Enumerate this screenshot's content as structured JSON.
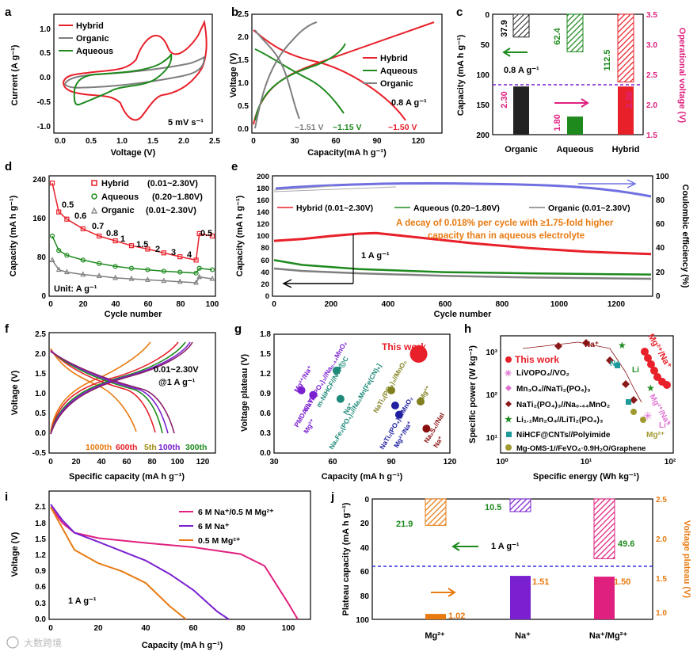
{
  "watermark": "大数跨境",
  "colors": {
    "hybrid": "#e8202a",
    "organic": "#7f7f7f",
    "aqueous": "#1e8a1e",
    "pink": "#e0207f",
    "purple": "#7a20d0",
    "orange": "#e87a10",
    "blue": "#7070e0",
    "black": "#000000"
  },
  "panels": {
    "a": {
      "label": "a",
      "ylabel": "Current (A g⁻¹)",
      "xlabel": "Voltage (V)",
      "note": "5 mV s⁻¹",
      "xticks": [
        "0.0",
        "0.5",
        "1.0",
        "1.5",
        "2.0",
        "2.5"
      ],
      "yticks": [
        "1.0",
        "0.5",
        "0.0",
        "-0.5",
        "-1.0"
      ],
      "legend": [
        "Hybrid",
        "Organic",
        "Aqueous"
      ]
    },
    "b": {
      "label": "b",
      "ylabel": "Voltage (V)",
      "xlabel": "Capacity(mA h g⁻¹)",
      "xticks": [
        "0",
        "30",
        "60",
        "90",
        "120"
      ],
      "yticks": [
        "0.0",
        "0.5",
        "1.0",
        "1.5",
        "2.0",
        "2.5"
      ],
      "legend": [
        "Hybrid",
        "Aqueous",
        "Organic"
      ],
      "rate": "0.8 A g⁻¹",
      "plateaus": [
        "~1.51 V",
        "~1.15 V",
        "~1.50 V"
      ]
    },
    "c": {
      "label": "c",
      "ylabel": "Capacity (mA h g⁻¹)",
      "ylabel2": "Operational voltage (V)",
      "yticks": [
        "0",
        "50",
        "100",
        "150",
        "200"
      ],
      "yticks2": [
        "3.5",
        "3.0",
        "2.5",
        "2.0",
        "1.5"
      ],
      "categories": [
        "Organic",
        "Aqueous",
        "Hybrid"
      ],
      "capacity_labels": [
        "37.9",
        "62.4",
        "112.5"
      ],
      "voltage_labels": [
        "2.30",
        "1.80",
        "2.30"
      ],
      "rate": "0.8 A g⁻¹"
    },
    "d": {
      "label": "d",
      "ylabel": "Capacity (mA h g⁻¹)",
      "xlabel": "Cycle number",
      "xticks": [
        "0",
        "20",
        "40",
        "60",
        "80",
        "100"
      ],
      "yticks": [
        "0",
        "80",
        "160",
        "240"
      ],
      "legend": [
        "Hybrid",
        "Aqueous",
        "Organic"
      ],
      "legend_ranges": [
        "(0.01~2.30V)",
        "(0.20~1.80V)",
        "(0.01~2.30V)"
      ],
      "rates": [
        "0.5",
        "0.6",
        "0.7",
        "0.8",
        "1",
        "1.5",
        "2",
        "3",
        "4",
        "0.5"
      ],
      "unit": "Unit: A g⁻¹"
    },
    "e": {
      "label": "e",
      "ylabel": "Capacity (mA h g⁻¹)",
      "ylabel2": "Coulombic efficiency (%)",
      "xlabel": "Cycle number",
      "xticks": [
        "0",
        "200",
        "400",
        "600",
        "800",
        "1000",
        "1200"
      ],
      "yticks": [
        "0",
        "20",
        "40",
        "60",
        "80",
        "100",
        "120",
        "140",
        "160",
        "180",
        "200"
      ],
      "yticks2": [
        "0",
        "20",
        "40",
        "60",
        "80",
        "100"
      ],
      "legend": [
        "Hybrid (0.01~2.30V)",
        "Aqueous (0.20~1.80V)",
        "Organic (0.01~2.30V)"
      ],
      "annotation1": "A decay of 0.018% per cycle with ≥1.75-fold higher",
      "annotation2": "capacity than in aqueous electrolyte",
      "rate": "1 A g⁻¹"
    },
    "f": {
      "label": "f",
      "ylabel": "Voltage (V)",
      "xlabel": "Specific capacity (mA h g⁻¹)",
      "xticks": [
        "0",
        "20",
        "40",
        "60",
        "80",
        "100",
        "120"
      ],
      "yticks": [
        "2.5",
        "2.0",
        "1.5",
        "1.0",
        "0.5",
        "0.0",
        "-0.5"
      ],
      "range": "0.01~2.30V",
      "rate": "@1 A g⁻¹",
      "cycles": [
        "1000th",
        "600th",
        "5th",
        "100th",
        "300th"
      ]
    },
    "g": {
      "label": "g",
      "ylabel": "Voltage plateau (V)",
      "xlabel": "Capacity (mA h g⁻¹)",
      "xticks": [
        "30",
        "60",
        "90",
        "120"
      ],
      "yticks": [
        "0.0",
        "0.3",
        "0.6",
        "0.9",
        "1.2",
        "1.5",
        "1.8"
      ],
      "this_work": "This work",
      "labels": [
        "Mg²⁺/Na⁺",
        "NaTi₂(PO₄)₃//Na₀.₄₄MnO₂",
        "Na⁺",
        "m-NiHCF//NTP@C",
        "PMDA//LVP",
        "Mg²⁺",
        "Na⁺",
        "Na₂Fe₂(PO₄)₃//Na₂Mn[Fe(CN)₆]",
        "NaTi₂(PO₄)₃//MnO₂",
        "Mg²⁺",
        "NaTi₂(PO₄)₃//MnO₂",
        "Mg²⁺/Na⁺",
        "Na₂S₄//NaI",
        "Na⁺"
      ]
    },
    "h": {
      "label": "h",
      "ylabel": "Specific power (W kg⁻¹)",
      "xlabel": "Specific energy (Wh kg⁻¹)",
      "xticks": [
        "10⁰",
        "10¹",
        "10²"
      ],
      "yticks": [
        "10³",
        "10²",
        "10¹"
      ],
      "legend": [
        "This work",
        "LiVOPO₄//VO₂",
        "Mn₃O₄//NaTi₂(PO₄)₃",
        "NaTi₂(PO₄)₃//Na₀.₄₄MnO₂",
        "Li₁.₁Mn₂O₄//LiTi₂(PO₄)₃",
        "NiHCF@CNTs//Polyimide",
        "Mg-OMS-1//FeVO₄·0.9H₂O/Graphene"
      ],
      "labels": [
        "Na⁺",
        "Mg²⁺/Na⁺",
        "Na",
        "Li",
        "Mg²⁺/Na⁺",
        "Mg²⁺",
        "Li⁺"
      ]
    },
    "i": {
      "label": "i",
      "ylabel": "Voltage (V)",
      "xlabel": "Capacity (mA h g⁻¹)",
      "xticks": [
        "0",
        "20",
        "40",
        "60",
        "80",
        "100"
      ],
      "yticks": [
        "0.0",
        "0.3",
        "0.6",
        "0.9",
        "1.2",
        "1.5",
        "1.8",
        "2.1"
      ],
      "legend": [
        "6 M Na⁺/0.5 M Mg²⁺",
        "6 M Na⁺",
        "0.5 M Mg²⁺"
      ],
      "rate": "1 A g⁻¹"
    },
    "j": {
      "label": "j",
      "ylabel": "Plateau capacity (mA h g⁻¹)",
      "ylabel2": "Voltage plateau (V)",
      "yticks": [
        "0",
        "20",
        "40",
        "60",
        "80",
        "100"
      ],
      "yticks2": [
        "2.5",
        "2.0",
        "1.5",
        "1.0"
      ],
      "categories": [
        "Mg²⁺",
        "Na⁺",
        "Na⁺/Mg²⁺"
      ],
      "capacity_labels": [
        "21.9",
        "10.5",
        "49.6"
      ],
      "voltage_labels": [
        "1.02",
        "1.51",
        "1.50"
      ],
      "rate": "1 A g⁻¹"
    }
  },
  "chart_data": [
    {
      "type": "bar",
      "panel": "c",
      "categories": [
        "Organic",
        "Aqueous",
        "Hybrid"
      ],
      "series": [
        {
          "name": "Capacity",
          "values": [
            37.9,
            62.4,
            112.5
          ]
        },
        {
          "name": "Operational voltage",
          "values": [
            2.3,
            1.8,
            2.3
          ]
        }
      ],
      "ylabel": "Capacity (mA h g⁻¹)",
      "ylim": [
        0,
        200
      ],
      "y2label": "Operational voltage (V)",
      "y2lim": [
        1.5,
        3.5
      ]
    },
    {
      "type": "bar",
      "panel": "j",
      "categories": [
        "Mg²⁺",
        "Na⁺",
        "Na⁺/Mg²⁺"
      ],
      "series": [
        {
          "name": "Plateau capacity",
          "values": [
            21.9,
            10.5,
            49.6
          ]
        },
        {
          "name": "Voltage plateau",
          "values": [
            1.02,
            1.51,
            1.5
          ]
        }
      ],
      "ylabel": "Plateau capacity (mA h g⁻¹)",
      "ylim": [
        0,
        100
      ],
      "y2label": "Voltage plateau (V)",
      "y2lim": [
        0.95,
        2.5
      ]
    },
    {
      "type": "line",
      "panel": "i",
      "xlabel": "Capacity (mA h g⁻¹)",
      "ylabel": "Voltage (V)",
      "xlim": [
        0,
        110
      ],
      "ylim": [
        0,
        2.4
      ],
      "series": [
        {
          "name": "6 M Na⁺/0.5 M Mg²⁺",
          "x": [
            0,
            5,
            10,
            20,
            40,
            60,
            80,
            90,
            100,
            104
          ],
          "y": [
            2.1,
            1.8,
            1.62,
            1.52,
            1.43,
            1.35,
            1.22,
            1.0,
            0.3,
            0
          ]
        },
        {
          "name": "6 M Na⁺",
          "x": [
            0,
            5,
            10,
            20,
            40,
            50,
            60,
            70,
            75
          ],
          "y": [
            2.15,
            1.85,
            1.62,
            1.45,
            1.1,
            0.85,
            0.55,
            0.15,
            0
          ]
        },
        {
          "name": "0.5 M Mg²⁺",
          "x": [
            0,
            5,
            10,
            20,
            30,
            40,
            50,
            57
          ],
          "y": [
            2.1,
            1.7,
            1.3,
            1.05,
            0.9,
            0.68,
            0.25,
            0
          ]
        }
      ]
    },
    {
      "type": "line",
      "panel": "e",
      "xlabel": "Cycle number",
      "ylabel": "Capacity (mA h g⁻¹)",
      "xlim": [
        0,
        1330
      ],
      "ylim": [
        0,
        200
      ],
      "series": [
        {
          "name": "Hybrid (0.01~2.30V)",
          "x": [
            0,
            100,
            200,
            300,
            360,
            500,
            700,
            900,
            1100,
            1330
          ],
          "y": [
            92,
            95,
            100,
            104,
            105,
            98,
            88,
            80,
            74,
            70
          ]
        },
        {
          "name": "Aqueous (0.20~1.80V)",
          "x": [
            0,
            100,
            300,
            600,
            900,
            1100,
            1330
          ],
          "y": [
            60,
            52,
            45,
            40,
            38,
            37,
            36
          ]
        },
        {
          "name": "Organic (0.01~2.30V)",
          "x": [
            0,
            100,
            300,
            600,
            900,
            1330
          ],
          "y": [
            46,
            42,
            38,
            34,
            31,
            29
          ]
        }
      ]
    },
    {
      "type": "scatter",
      "panel": "d",
      "xlabel": "Cycle number",
      "ylabel": "Capacity (mA h g⁻¹)",
      "xlim": [
        0,
        100
      ],
      "ylim": [
        0,
        250
      ],
      "series": [
        {
          "name": "Hybrid",
          "x": [
            1,
            5,
            10,
            20,
            30,
            40,
            50,
            60,
            70,
            80,
            90,
            92,
            100
          ],
          "y": [
            235,
            175,
            160,
            140,
            125,
            115,
            105,
            98,
            90,
            82,
            75,
            130,
            125
          ]
        },
        {
          "name": "Aqueous",
          "x": [
            1,
            5,
            10,
            20,
            30,
            40,
            50,
            60,
            70,
            80,
            90,
            92,
            100
          ],
          "y": [
            125,
            95,
            85,
            75,
            68,
            62,
            58,
            55,
            52,
            50,
            48,
            58,
            55
          ]
        },
        {
          "name": "Organic",
          "x": [
            1,
            5,
            10,
            20,
            30,
            40,
            50,
            60,
            70,
            80,
            90,
            92,
            100
          ],
          "y": [
            75,
            55,
            50,
            45,
            42,
            38,
            36,
            34,
            32,
            30,
            28,
            40,
            36
          ]
        }
      ]
    },
    {
      "type": "scatter",
      "panel": "g",
      "xlabel": "Capacity (mA h g⁻¹)",
      "ylabel": "Voltage plateau (V)",
      "xlim": [
        30,
        120
      ],
      "ylim": [
        0,
        1.8
      ],
      "series": [
        {
          "name": "points",
          "x": [
            44,
            50,
            62,
            64,
            90,
            92,
            94,
            105,
            108
          ],
          "y": [
            0.95,
            0.88,
            1.25,
            0.82,
            0.95,
            0.72,
            0.58,
            0.78,
            0.37
          ]
        },
        {
          "name": "This work",
          "x": [
            104
          ],
          "y": [
            1.5
          ]
        }
      ]
    }
  ]
}
